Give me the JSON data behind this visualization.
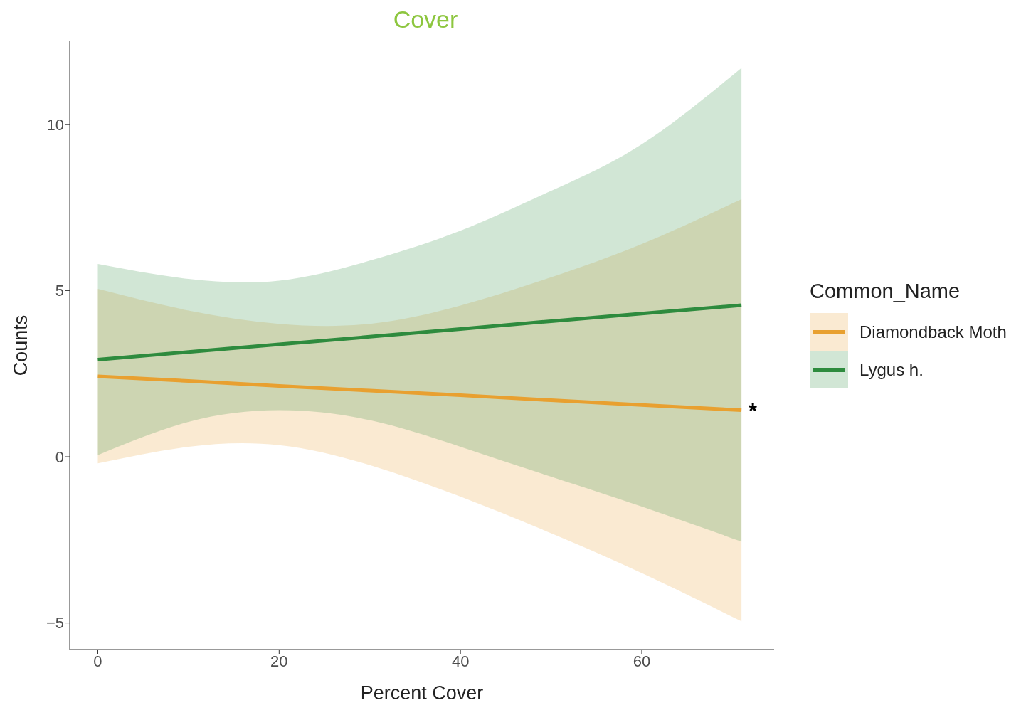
{
  "chart_data": {
    "type": "line",
    "title": "Cover",
    "xlabel": "Percent Cover",
    "ylabel": "Counts",
    "legend_title": "Common_Name",
    "legend": "right",
    "xlim": [
      -3.1,
      74.6
    ],
    "ylim": [
      -5.8,
      12.5
    ],
    "xticks": [
      0,
      20,
      40,
      60
    ],
    "yticks": [
      -5,
      0,
      5,
      10
    ],
    "line_style": "solid",
    "marker": "none",
    "series": [
      {
        "name": "Diamondback Moth",
        "color": "#e8a030",
        "x": [
          0,
          10,
          20,
          30,
          40,
          50,
          60,
          71
        ],
        "values": [
          2.42,
          2.28,
          2.13,
          1.99,
          1.85,
          1.7,
          1.56,
          1.4
        ],
        "lower": [
          -0.2,
          0.3,
          0.35,
          -0.25,
          -1.2,
          -2.3,
          -3.5,
          -4.95
        ],
        "upper": [
          5.05,
          4.4,
          4.0,
          4.0,
          4.55,
          5.4,
          6.4,
          7.75
        ]
      },
      {
        "name": "Lygus h.",
        "color": "#2e8b3e",
        "x": [
          0,
          10,
          20,
          30,
          40,
          50,
          60,
          71
        ],
        "values": [
          2.92,
          3.15,
          3.38,
          3.61,
          3.84,
          4.08,
          4.31,
          4.56
        ],
        "lower": [
          0.05,
          1.05,
          1.4,
          1.1,
          0.3,
          -0.6,
          -1.5,
          -2.55
        ],
        "upper": [
          5.8,
          5.35,
          5.3,
          5.9,
          6.8,
          8.0,
          9.4,
          11.7
        ]
      }
    ],
    "annotations": [
      {
        "text": "*",
        "x": 71,
        "y": 1.4
      }
    ]
  }
}
